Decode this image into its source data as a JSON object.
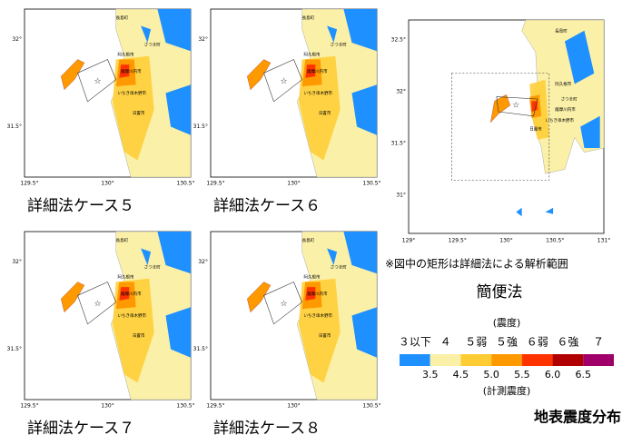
{
  "panels": [
    {
      "caption": "詳細法ケース５",
      "xticks": [
        "129.5°",
        "130°",
        "130.5°"
      ],
      "yticks": [
        "32°",
        "31.5°"
      ]
    },
    {
      "caption": "詳細法ケース６",
      "xticks": [
        "129.5°",
        "130°",
        "130.5°"
      ],
      "yticks": [
        "32°",
        "31.5°"
      ]
    },
    {
      "caption": "詳細法ケース７",
      "xticks": [
        "129.5°",
        "130°",
        "130.5°"
      ],
      "yticks": [
        "32°",
        "31.5°"
      ]
    },
    {
      "caption": "詳細法ケース８",
      "xticks": [
        "129.5°",
        "130°",
        "130.5°"
      ],
      "yticks": [
        "32°",
        "31.5°"
      ]
    }
  ],
  "places": [
    "長島町",
    "阿久根市",
    "さつま町",
    "薩摩川内市",
    "いちき串木野市",
    "日置市"
  ],
  "simple_panel": {
    "caption": "簡便法",
    "note": "※図中の矩形は詳細法による解析範囲",
    "xticks": [
      "129°",
      "129.5°",
      "130°",
      "130.5°",
      "131°"
    ],
    "yticks": [
      "32.5°",
      "32°",
      "31.5°",
      "31°"
    ]
  },
  "legend": {
    "title": "(震度)",
    "classes": [
      "３以下",
      "４",
      "５弱",
      "５強",
      "６弱",
      "６強",
      "７"
    ],
    "colors": [
      "#1e90ff",
      "#fbf0a8",
      "#ffcc33",
      "#ff9900",
      "#ff3300",
      "#b00000",
      "#a0006a"
    ],
    "boundaries": [
      "3.5",
      "4.5",
      "5.0",
      "5.5",
      "6.0",
      "6.5"
    ],
    "subtitle": "(計測震度)"
  },
  "figure_title": "地表震度分布"
}
